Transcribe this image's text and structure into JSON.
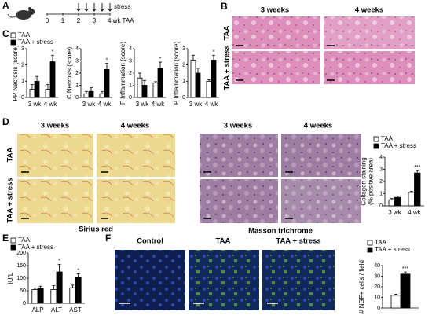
{
  "panels": [
    "A",
    "B",
    "C",
    "D",
    "E",
    "F"
  ],
  "timeline": {
    "ticks": [
      "0",
      "1",
      "2",
      "3",
      "4 wk TAA"
    ],
    "stress_label": "stress"
  },
  "panel_b": {
    "columns": [
      "3 weeks",
      "4 weeks"
    ],
    "rows": [
      "TAA",
      "TAA + stress"
    ]
  },
  "panel_d": {
    "columns": [
      "3 weeks",
      "4 weeks",
      "3 weeks",
      "4 weeks"
    ],
    "rows": [
      "TAA",
      "TAA + stress"
    ],
    "stains": [
      "Sirius red",
      "Masson trichrome"
    ]
  },
  "panel_f": {
    "columns": [
      "Control",
      "TAA",
      "TAA + stress"
    ]
  },
  "chart_data": [
    {
      "type": "bar",
      "ylabel": [
        "PP Necrosis (score)"
      ],
      "categories": [
        "3 wk",
        "4 wk"
      ],
      "ylim": [
        0,
        3
      ],
      "yticks": [
        0,
        1,
        2,
        3
      ],
      "legend": true,
      "series": [
        {
          "name": "TAA",
          "color": "#ffffff",
          "values": [
            0.5,
            0.5
          ],
          "errors": [
            0.3,
            0.3
          ]
        },
        {
          "name": "TAA + stress",
          "color": "#000000",
          "values": [
            1.0,
            2.2
          ],
          "errors": [
            0.3,
            0.4
          ],
          "significance": [
            null,
            "*"
          ]
        }
      ]
    },
    {
      "type": "bar",
      "ylabel": [
        "C Necrosis (score)"
      ],
      "categories": [
        "3 wk",
        "4 wk"
      ],
      "ylim": [
        0,
        4
      ],
      "yticks": [
        0,
        1,
        2,
        3,
        4
      ],
      "series": [
        {
          "name": "TAA",
          "color": "#ffffff",
          "values": [
            0.3,
            0.3
          ],
          "errors": [
            0.2,
            0.2
          ]
        },
        {
          "name": "TAA + stress",
          "color": "#000000",
          "values": [
            0.5,
            2.3
          ],
          "errors": [
            0.3,
            0.5
          ],
          "significance": [
            null,
            "*"
          ]
        }
      ]
    },
    {
      "type": "bar",
      "ylabel": [
        "F Inflammation (score)"
      ],
      "categories": [
        "3 wk",
        "4 wk"
      ],
      "ylim": [
        0,
        4
      ],
      "yticks": [
        0,
        1,
        2,
        3,
        4
      ],
      "series": [
        {
          "name": "TAA",
          "color": "#ffffff",
          "values": [
            1.6,
            1.2
          ],
          "errors": [
            0.4,
            0.1
          ]
        },
        {
          "name": "TAA + stress",
          "color": "#000000",
          "values": [
            1.0,
            2.4
          ],
          "errors": [
            0.4,
            0.5
          ],
          "significance": [
            null,
            "*"
          ]
        }
      ]
    },
    {
      "type": "bar",
      "ylabel": [
        "P Inflammation (score)"
      ],
      "categories": [
        "3 wk",
        "4 wk"
      ],
      "ylim": [
        0,
        3
      ],
      "yticks": [
        0,
        1,
        2,
        3
      ],
      "series": [
        {
          "name": "TAA",
          "color": "#ffffff",
          "values": [
            2.3,
            1.0
          ],
          "errors": [
            0.3,
            0.1
          ]
        },
        {
          "name": "TAA + stress",
          "color": "#000000",
          "values": [
            1.5,
            2.3
          ],
          "errors": [
            0.3,
            0.3
          ],
          "significance": [
            null,
            "*"
          ]
        }
      ]
    },
    {
      "type": "bar",
      "ylabel": [
        "Collagen staining",
        "(% positive area)"
      ],
      "categories": [
        "3 wk",
        "4 wk"
      ],
      "ylim": [
        0,
        4
      ],
      "yticks": [
        0,
        1,
        2,
        3,
        4
      ],
      "legend": true,
      "series": [
        {
          "name": "TAA",
          "color": "#ffffff",
          "values": [
            0.5,
            1.1
          ],
          "errors": [
            0.1,
            0.1
          ]
        },
        {
          "name": "TAA + stress",
          "color": "#000000",
          "values": [
            0.7,
            2.7
          ],
          "errors": [
            0.1,
            0.2
          ],
          "significance": [
            null,
            "***"
          ]
        }
      ]
    },
    {
      "type": "bar",
      "ylabel": [
        "IU/L"
      ],
      "categories": [
        "ALP",
        "ALT",
        "AST"
      ],
      "ylim": [
        0,
        200
      ],
      "yticks": [
        0,
        50,
        100,
        150,
        200
      ],
      "legend": true,
      "series": [
        {
          "name": "TAA",
          "color": "#ffffff",
          "values": [
            55,
            55,
            62
          ],
          "errors": [
            5,
            15,
            10
          ]
        },
        {
          "name": "TAA + stress",
          "color": "#000000",
          "values": [
            60,
            125,
            105
          ],
          "errors": [
            8,
            30,
            12
          ],
          "significance": [
            null,
            "*",
            "*"
          ]
        }
      ]
    },
    {
      "type": "bar",
      "ylabel": [
        "# NGF+ cells / field"
      ],
      "categories": [
        null
      ],
      "ylim": [
        0,
        40
      ],
      "yticks": [
        0,
        10,
        20,
        30,
        40
      ],
      "legend": true,
      "series": [
        {
          "name": "TAA",
          "color": "#ffffff",
          "values": [
            12
          ],
          "errors": [
            1
          ]
        },
        {
          "name": "TAA + stress",
          "color": "#000000",
          "values": [
            32
          ],
          "errors": [
            2
          ],
          "significance": [
            "***"
          ]
        }
      ]
    }
  ]
}
